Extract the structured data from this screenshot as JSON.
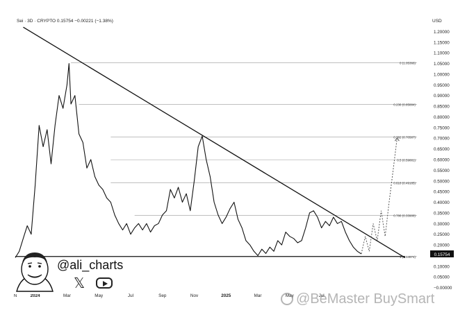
{
  "header": {
    "symbol": "Sei · 3D · CRYPTO",
    "price": "0.15754",
    "change": "−0.00221 (−1.38%)"
  },
  "unit": "USD",
  "author": {
    "handle": "@ali_charts",
    "icons": [
      "x-logo",
      "youtube-logo"
    ]
  },
  "watermark": "@BeMaster BuySmart",
  "colors": {
    "line": "#111111",
    "grid": "#999999",
    "price_tag_bg": "#111111",
    "projection": "#555555"
  },
  "chart_data": {
    "type": "line",
    "ylim": [
      -0.05,
      1.25
    ],
    "yticks": [
      "1.20000",
      "1.15000",
      "1.10000",
      "1.05000",
      "1.00000",
      "0.95000",
      "0.90000",
      "0.85000",
      "0.80000",
      "0.75000",
      "0.70000",
      "0.65000",
      "0.60000",
      "0.55000",
      "0.50000",
      "0.45000",
      "0.40000",
      "0.35000",
      "0.30000",
      "0.25000",
      "0.20000",
      "0.15000",
      "0.10000",
      "0.05000",
      "−0.00000"
    ],
    "ytick_values": [
      1.2,
      1.15,
      1.1,
      1.05,
      1.0,
      0.95,
      0.9,
      0.85,
      0.8,
      0.75,
      0.7,
      0.65,
      0.6,
      0.55,
      0.5,
      0.45,
      0.4,
      0.35,
      0.3,
      0.25,
      0.2,
      0.15,
      0.1,
      0.05,
      0.0
    ],
    "xticks": [
      "N",
      "2024",
      "Mar",
      "May",
      "Jul",
      "Sep",
      "Nov",
      "2025",
      "Mar",
      "May",
      "Jul"
    ],
    "xtick_values": [
      0,
      5,
      13,
      21,
      29,
      37,
      45,
      53,
      61,
      69,
      77
    ],
    "x_range": [
      0,
      101
    ],
    "last_price_label": "0.15754",
    "fib_levels": [
      {
        "label": "0 (1.05366)",
        "value": 1.05366
      },
      {
        "label": "0.236 (0.85884)",
        "value": 0.85884
      },
      {
        "label": "0.382 (0.70587)",
        "value": 0.70587
      },
      {
        "label": "0.5 (0.59881)",
        "value": 0.59881
      },
      {
        "label": "0.618 (0.49185)",
        "value": 0.49185
      },
      {
        "label": "0.786 (0.33908)",
        "value": 0.33908
      },
      {
        "label": "1 (0.14574)",
        "value": 0.14574
      }
    ],
    "trendline": {
      "x": [
        2,
        98
      ],
      "y": [
        1.22,
        0.14
      ]
    },
    "support_line": {
      "x": [
        0,
        98
      ],
      "y": [
        0.14574,
        0.14574
      ]
    },
    "series": [
      {
        "x": [
          0,
          1,
          2,
          3,
          4,
          5,
          6,
          7,
          8,
          9,
          10,
          11,
          12,
          13,
          13.5,
          14,
          15,
          16,
          17,
          18,
          19,
          20,
          21,
          22,
          23,
          24,
          25,
          26,
          27,
          28,
          29,
          30,
          31,
          32,
          33,
          34,
          35,
          36,
          37,
          38,
          39,
          40,
          41,
          42,
          43,
          44,
          45,
          46,
          47,
          48,
          49,
          50,
          51,
          52,
          53,
          54,
          55,
          56,
          57,
          58,
          59,
          60,
          61,
          62,
          63,
          64,
          65,
          66,
          67,
          68,
          69,
          70,
          71,
          72,
          73,
          74,
          75,
          76,
          77,
          78,
          79,
          80,
          81,
          82,
          83,
          84,
          85,
          86,
          87
        ],
        "values": [
          0.14,
          0.17,
          0.23,
          0.29,
          0.25,
          0.48,
          0.76,
          0.66,
          0.74,
          0.58,
          0.76,
          0.9,
          0.84,
          0.95,
          1.05,
          0.86,
          0.9,
          0.72,
          0.68,
          0.56,
          0.6,
          0.52,
          0.48,
          0.46,
          0.42,
          0.4,
          0.34,
          0.3,
          0.27,
          0.3,
          0.25,
          0.28,
          0.3,
          0.27,
          0.3,
          0.26,
          0.29,
          0.3,
          0.34,
          0.36,
          0.46,
          0.42,
          0.47,
          0.4,
          0.44,
          0.36,
          0.5,
          0.66,
          0.71,
          0.6,
          0.52,
          0.4,
          0.34,
          0.3,
          0.33,
          0.37,
          0.4,
          0.32,
          0.28,
          0.22,
          0.2,
          0.17,
          0.15,
          0.18,
          0.16,
          0.19,
          0.17,
          0.22,
          0.2,
          0.26,
          0.24,
          0.23,
          0.21,
          0.22,
          0.28,
          0.35,
          0.36,
          0.33,
          0.28,
          0.31,
          0.29,
          0.33,
          0.3,
          0.31,
          0.26,
          0.22,
          0.19,
          0.17,
          0.158
        ]
      }
    ],
    "projection": {
      "x": [
        87,
        88,
        89,
        90,
        91,
        92,
        93,
        94,
        95,
        96
      ],
      "y": [
        0.158,
        0.24,
        0.17,
        0.3,
        0.22,
        0.36,
        0.24,
        0.4,
        0.55,
        0.7
      ]
    }
  }
}
